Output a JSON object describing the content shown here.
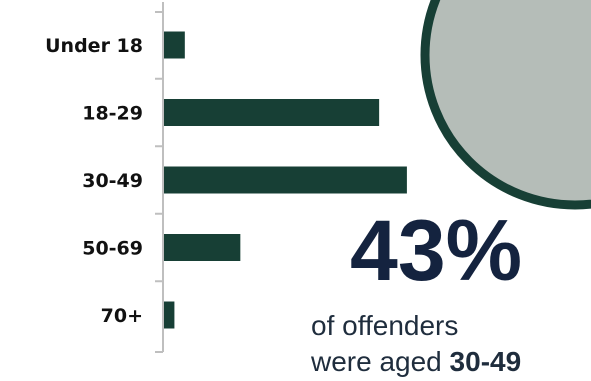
{
  "chart_data": {
    "type": "bar",
    "orientation": "horizontal",
    "categories": [
      "Under 18",
      "18-29",
      "30-49",
      "50-69",
      "70+"
    ],
    "values": [
      3,
      31,
      35,
      11,
      1.5
    ],
    "xlim": [
      0,
      50
    ],
    "grid": false,
    "title": "",
    "xlabel": "",
    "ylabel": ""
  },
  "annotation": {
    "big_stat": "43%",
    "caption_line1": "of offenders",
    "caption_line2_prefix": "were aged ",
    "caption_line2_bold": "30-49"
  },
  "colors": {
    "bar": "#173f35",
    "axis": "#bfbfbf",
    "circle_fill": "#b5bdb8",
    "circle_stroke": "#173f35",
    "big_stat": "#14233f",
    "caption": "#1f2d3d"
  }
}
